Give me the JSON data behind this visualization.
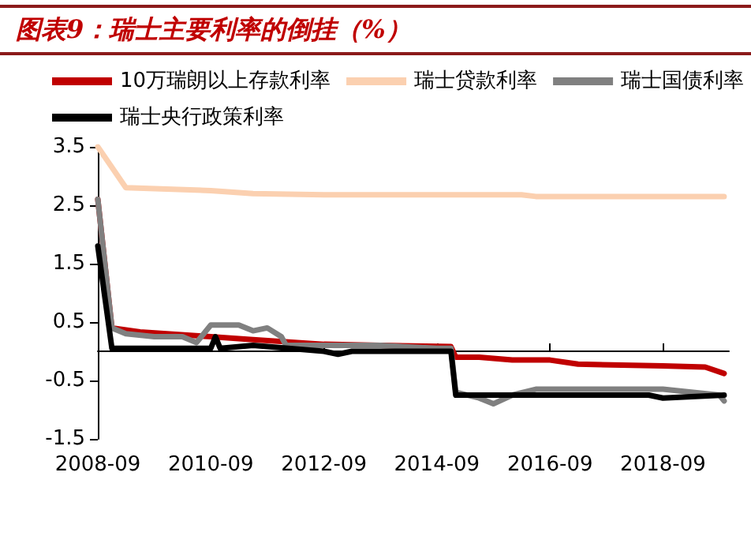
{
  "chart_data": {
    "type": "line",
    "title": "图表9：瑞士主要利率的倒挂（%）",
    "xlim": [
      "2008-09",
      "2019-11"
    ],
    "xticks": [
      "2008-09",
      "2010-09",
      "2012-09",
      "2014-09",
      "2016-09",
      "2018-09"
    ],
    "ylim": [
      -1.5,
      3.5
    ],
    "yticks": [
      -1.5,
      -0.5,
      0.5,
      1.5,
      2.5,
      3.5
    ],
    "grid": false,
    "legend": "top",
    "marker": "none",
    "line_style": "solid",
    "series": [
      {
        "name": "10万瑞朗以上存款利率",
        "color": "#c00000",
        "x": [
          "2008-09",
          "2008-12",
          "2009-06",
          "2010-09",
          "2011-06",
          "2012-09",
          "2013-09",
          "2014-12",
          "2015-01",
          "2015-06",
          "2016-01",
          "2016-09",
          "2017-03",
          "2018-09",
          "2019-06",
          "2019-10"
        ],
        "values": [
          2.6,
          0.4,
          0.33,
          0.25,
          0.2,
          0.12,
          0.1,
          0.08,
          -0.1,
          -0.1,
          -0.15,
          -0.15,
          -0.22,
          -0.25,
          -0.27,
          -0.38
        ]
      },
      {
        "name": "瑞士贷款利率",
        "color": "#fbd0b0",
        "x": [
          "2008-09",
          "2009-03",
          "2010-09",
          "2011-06",
          "2012-09",
          "2016-03",
          "2016-06",
          "2019-10"
        ],
        "values": [
          3.5,
          2.8,
          2.75,
          2.7,
          2.68,
          2.68,
          2.65,
          2.65
        ]
      },
      {
        "name": "瑞士国债利率",
        "color": "#808080",
        "x": [
          "2008-09",
          "2008-12",
          "2009-03",
          "2009-09",
          "2010-03",
          "2010-06",
          "2010-09",
          "2011-03",
          "2011-06",
          "2011-09",
          "2011-12",
          "2012-01",
          "2012-09",
          "2013-03",
          "2013-09",
          "2014-09",
          "2014-12",
          "2015-01",
          "2015-06",
          "2015-09",
          "2016-01",
          "2016-06",
          "2017-09",
          "2018-09",
          "2019-09",
          "2019-10"
        ],
        "values": [
          2.6,
          0.4,
          0.3,
          0.25,
          0.25,
          0.15,
          0.45,
          0.45,
          0.35,
          0.4,
          0.25,
          0.1,
          0.1,
          0.1,
          0.1,
          0.05,
          0.05,
          -0.7,
          -0.8,
          -0.9,
          -0.75,
          -0.65,
          -0.65,
          -0.65,
          -0.75,
          -0.85
        ]
      },
      {
        "name": "瑞士央行政策利率",
        "color": "#000000",
        "x": [
          "2008-09",
          "2008-12",
          "2010-09",
          "2010-10",
          "2010-11",
          "2011-06",
          "2012-09",
          "2012-12",
          "2013-03",
          "2014-09",
          "2014-12",
          "2015-01",
          "2016-06",
          "2018-06",
          "2018-09",
          "2019-10"
        ],
        "values": [
          1.8,
          0.05,
          0.05,
          0.25,
          0.05,
          0.1,
          0.0,
          -0.05,
          0.0,
          0.0,
          0.0,
          -0.75,
          -0.75,
          -0.75,
          -0.8,
          -0.75
        ]
      }
    ]
  }
}
